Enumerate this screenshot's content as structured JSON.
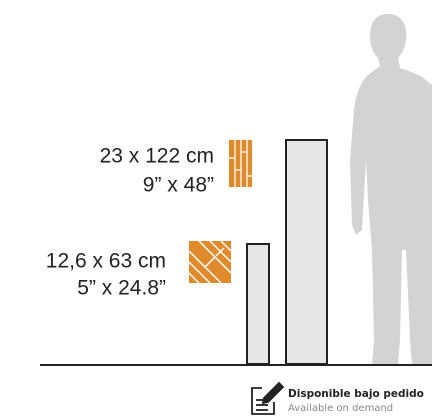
{
  "sizes": [
    {
      "metric": "23 x 122 cm",
      "imperial": "9” x 48”"
    },
    {
      "metric": "12,6 x 63 cm",
      "imperial": "5” x 24.8”"
    }
  ],
  "availability": {
    "title": "Disponible bajo pedido",
    "subtitle": "Available on demand"
  }
}
